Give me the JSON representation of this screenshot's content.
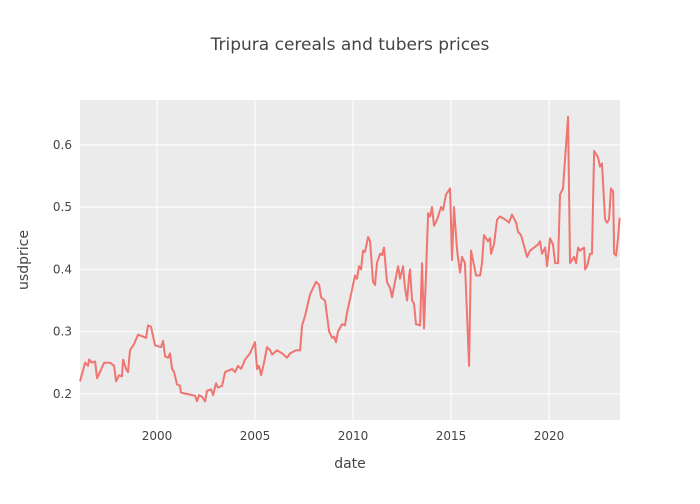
{
  "chart_data": {
    "type": "line",
    "title": "Tripura cereals and tubers prices",
    "x_label": "date",
    "y_label": "usdprice",
    "xlim": [
      1996.07,
      2023.62
    ],
    "ylim": [
      0.158,
      0.672
    ],
    "xticks": [
      2000,
      2005,
      2010,
      2015,
      2020
    ],
    "yticks": [
      0.2,
      0.3,
      0.4,
      0.5,
      0.6
    ],
    "grid": true,
    "plot_background": "#ebebeb",
    "series": [
      {
        "color": "#f07470",
        "x": [
          1996.07,
          1996.33,
          1996.48,
          1996.53,
          1996.68,
          1996.84,
          1996.94,
          1997.09,
          1997.3,
          1997.6,
          1997.81,
          1997.91,
          1998.06,
          1998.21,
          1998.27,
          1998.42,
          1998.52,
          1998.62,
          1998.83,
          1999.03,
          1999.29,
          1999.44,
          1999.54,
          1999.69,
          1999.9,
          2000.2,
          2000.31,
          2000.41,
          2000.56,
          2000.66,
          2000.77,
          2000.87,
          2001.02,
          2001.17,
          2001.22,
          2001.94,
          2002.04,
          2002.14,
          2002.3,
          2002.45,
          2002.55,
          2002.76,
          2002.86,
          2003.01,
          2003.11,
          2003.32,
          2003.47,
          2003.83,
          2003.98,
          2004.13,
          2004.29,
          2004.49,
          2004.74,
          2005.0,
          2005.1,
          2005.2,
          2005.31,
          2005.46,
          2005.61,
          2005.77,
          2005.87,
          2006.12,
          2006.38,
          2006.63,
          2006.79,
          2007.09,
          2007.3,
          2007.4,
          2007.55,
          2007.81,
          2008.11,
          2008.27,
          2008.37,
          2008.57,
          2008.78,
          2008.93,
          2009.03,
          2009.13,
          2009.23,
          2009.44,
          2009.59,
          2009.69,
          2009.9,
          2010.1,
          2010.2,
          2010.31,
          2010.41,
          2010.51,
          2010.61,
          2010.77,
          2010.87,
          2011.02,
          2011.12,
          2011.22,
          2011.38,
          2011.48,
          2011.58,
          2011.73,
          2011.89,
          2011.99,
          2012.14,
          2012.3,
          2012.4,
          2012.55,
          2012.65,
          2012.76,
          2012.86,
          2012.91,
          2013.01,
          2013.11,
          2013.21,
          2013.42,
          2013.52,
          2013.62,
          2013.72,
          2013.83,
          2013.93,
          2014.03,
          2014.13,
          2014.29,
          2014.49,
          2014.59,
          2014.74,
          2014.95,
          2015.05,
          2015.15,
          2015.31,
          2015.46,
          2015.56,
          2015.71,
          2015.92,
          2016.02,
          2016.28,
          2016.48,
          2016.58,
          2016.68,
          2016.89,
          2016.99,
          2017.04,
          2017.19,
          2017.35,
          2017.5,
          2017.76,
          2017.96,
          2018.11,
          2018.32,
          2018.42,
          2018.57,
          2018.88,
          2019.03,
          2019.44,
          2019.54,
          2019.64,
          2019.8,
          2019.9,
          2020.05,
          2020.2,
          2020.31,
          2020.46,
          2020.56,
          2020.71,
          2020.97,
          2021.07,
          2021.28,
          2021.38,
          2021.48,
          2021.58,
          2021.79,
          2021.84,
          2021.94,
          2022.09,
          2022.19,
          2022.3,
          2022.5,
          2022.6,
          2022.7,
          2022.86,
          2022.96,
          2023.06,
          2023.16,
          2023.27,
          2023.32,
          2023.42,
          2023.52,
          2023.6
        ],
        "values": [
          0.22,
          0.25,
          0.245,
          0.255,
          0.25,
          0.252,
          0.225,
          0.235,
          0.25,
          0.25,
          0.245,
          0.22,
          0.23,
          0.228,
          0.255,
          0.24,
          0.235,
          0.27,
          0.28,
          0.295,
          0.292,
          0.29,
          0.31,
          0.308,
          0.278,
          0.275,
          0.285,
          0.26,
          0.258,
          0.265,
          0.24,
          0.235,
          0.215,
          0.213,
          0.202,
          0.197,
          0.188,
          0.198,
          0.195,
          0.188,
          0.205,
          0.207,
          0.198,
          0.217,
          0.21,
          0.213,
          0.235,
          0.24,
          0.235,
          0.245,
          0.24,
          0.255,
          0.265,
          0.283,
          0.24,
          0.245,
          0.23,
          0.25,
          0.275,
          0.27,
          0.263,
          0.27,
          0.265,
          0.258,
          0.265,
          0.27,
          0.27,
          0.31,
          0.325,
          0.36,
          0.38,
          0.375,
          0.355,
          0.35,
          0.3,
          0.29,
          0.292,
          0.283,
          0.3,
          0.312,
          0.31,
          0.33,
          0.36,
          0.39,
          0.385,
          0.405,
          0.4,
          0.43,
          0.428,
          0.452,
          0.445,
          0.38,
          0.375,
          0.41,
          0.425,
          0.423,
          0.435,
          0.38,
          0.37,
          0.355,
          0.38,
          0.405,
          0.385,
          0.405,
          0.37,
          0.35,
          0.39,
          0.4,
          0.35,
          0.345,
          0.312,
          0.31,
          0.41,
          0.305,
          0.39,
          0.49,
          0.485,
          0.5,
          0.47,
          0.48,
          0.5,
          0.495,
          0.52,
          0.53,
          0.415,
          0.5,
          0.43,
          0.395,
          0.42,
          0.41,
          0.245,
          0.43,
          0.39,
          0.39,
          0.41,
          0.455,
          0.445,
          0.45,
          0.425,
          0.44,
          0.48,
          0.485,
          0.48,
          0.475,
          0.488,
          0.475,
          0.46,
          0.455,
          0.42,
          0.43,
          0.44,
          0.445,
          0.425,
          0.435,
          0.405,
          0.45,
          0.44,
          0.41,
          0.41,
          0.52,
          0.53,
          0.645,
          0.41,
          0.42,
          0.41,
          0.435,
          0.43,
          0.435,
          0.4,
          0.405,
          0.425,
          0.425,
          0.59,
          0.58,
          0.565,
          0.57,
          0.48,
          0.475,
          0.48,
          0.53,
          0.525,
          0.425,
          0.422,
          0.45,
          0.483
        ]
      }
    ]
  }
}
